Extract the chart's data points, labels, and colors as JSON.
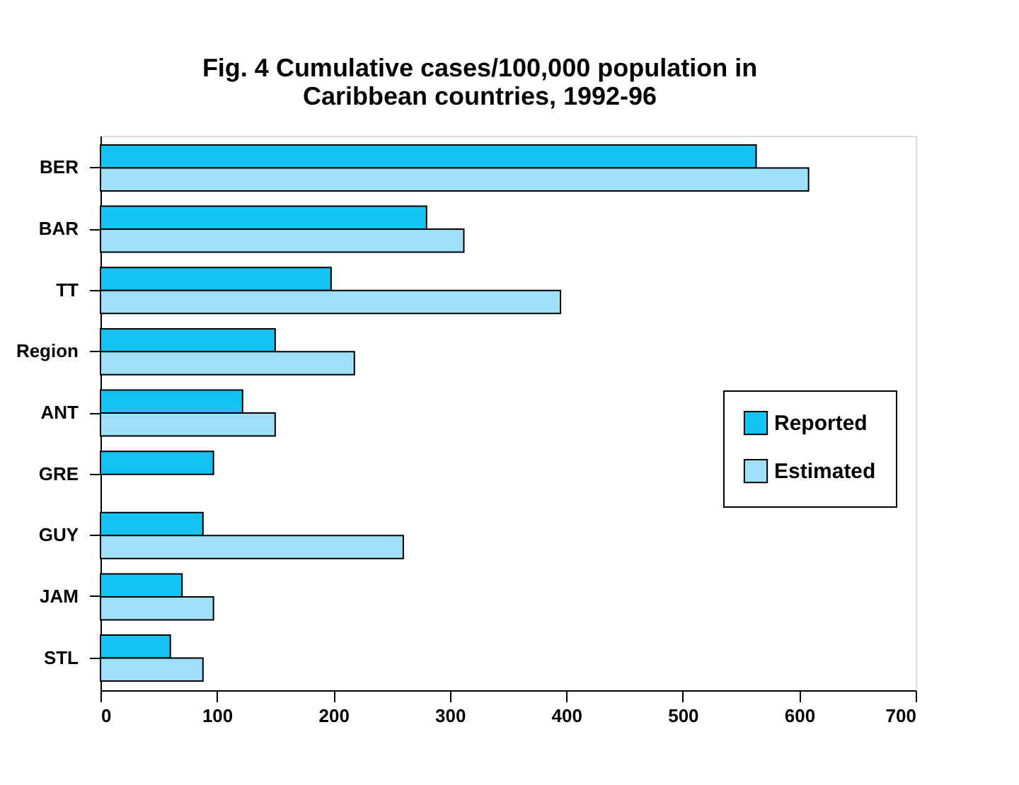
{
  "chart_data": {
    "type": "bar",
    "orientation": "horizontal",
    "title": [
      "Fig. 4 Cumulative cases/100,000 population in",
      "Caribbean countries, 1992-96"
    ],
    "categories": [
      "BER",
      "BAR",
      "TT",
      "Region",
      "ANT",
      "GRE",
      "GUY",
      "JAM",
      "STL"
    ],
    "series": [
      {
        "name": "Reported",
        "color": "#14c3f2",
        "values": [
          563,
          280,
          198,
          150,
          122,
          97,
          88,
          70,
          60
        ]
      },
      {
        "name": "Estimated",
        "color": "#9fdff8",
        "values": [
          608,
          312,
          395,
          218,
          150,
          null,
          260,
          97,
          88
        ]
      }
    ],
    "xlim": [
      0,
      700
    ],
    "xticks": [
      0,
      100,
      200,
      300,
      400,
      500,
      600,
      700
    ],
    "grid": false,
    "legend": "right"
  }
}
